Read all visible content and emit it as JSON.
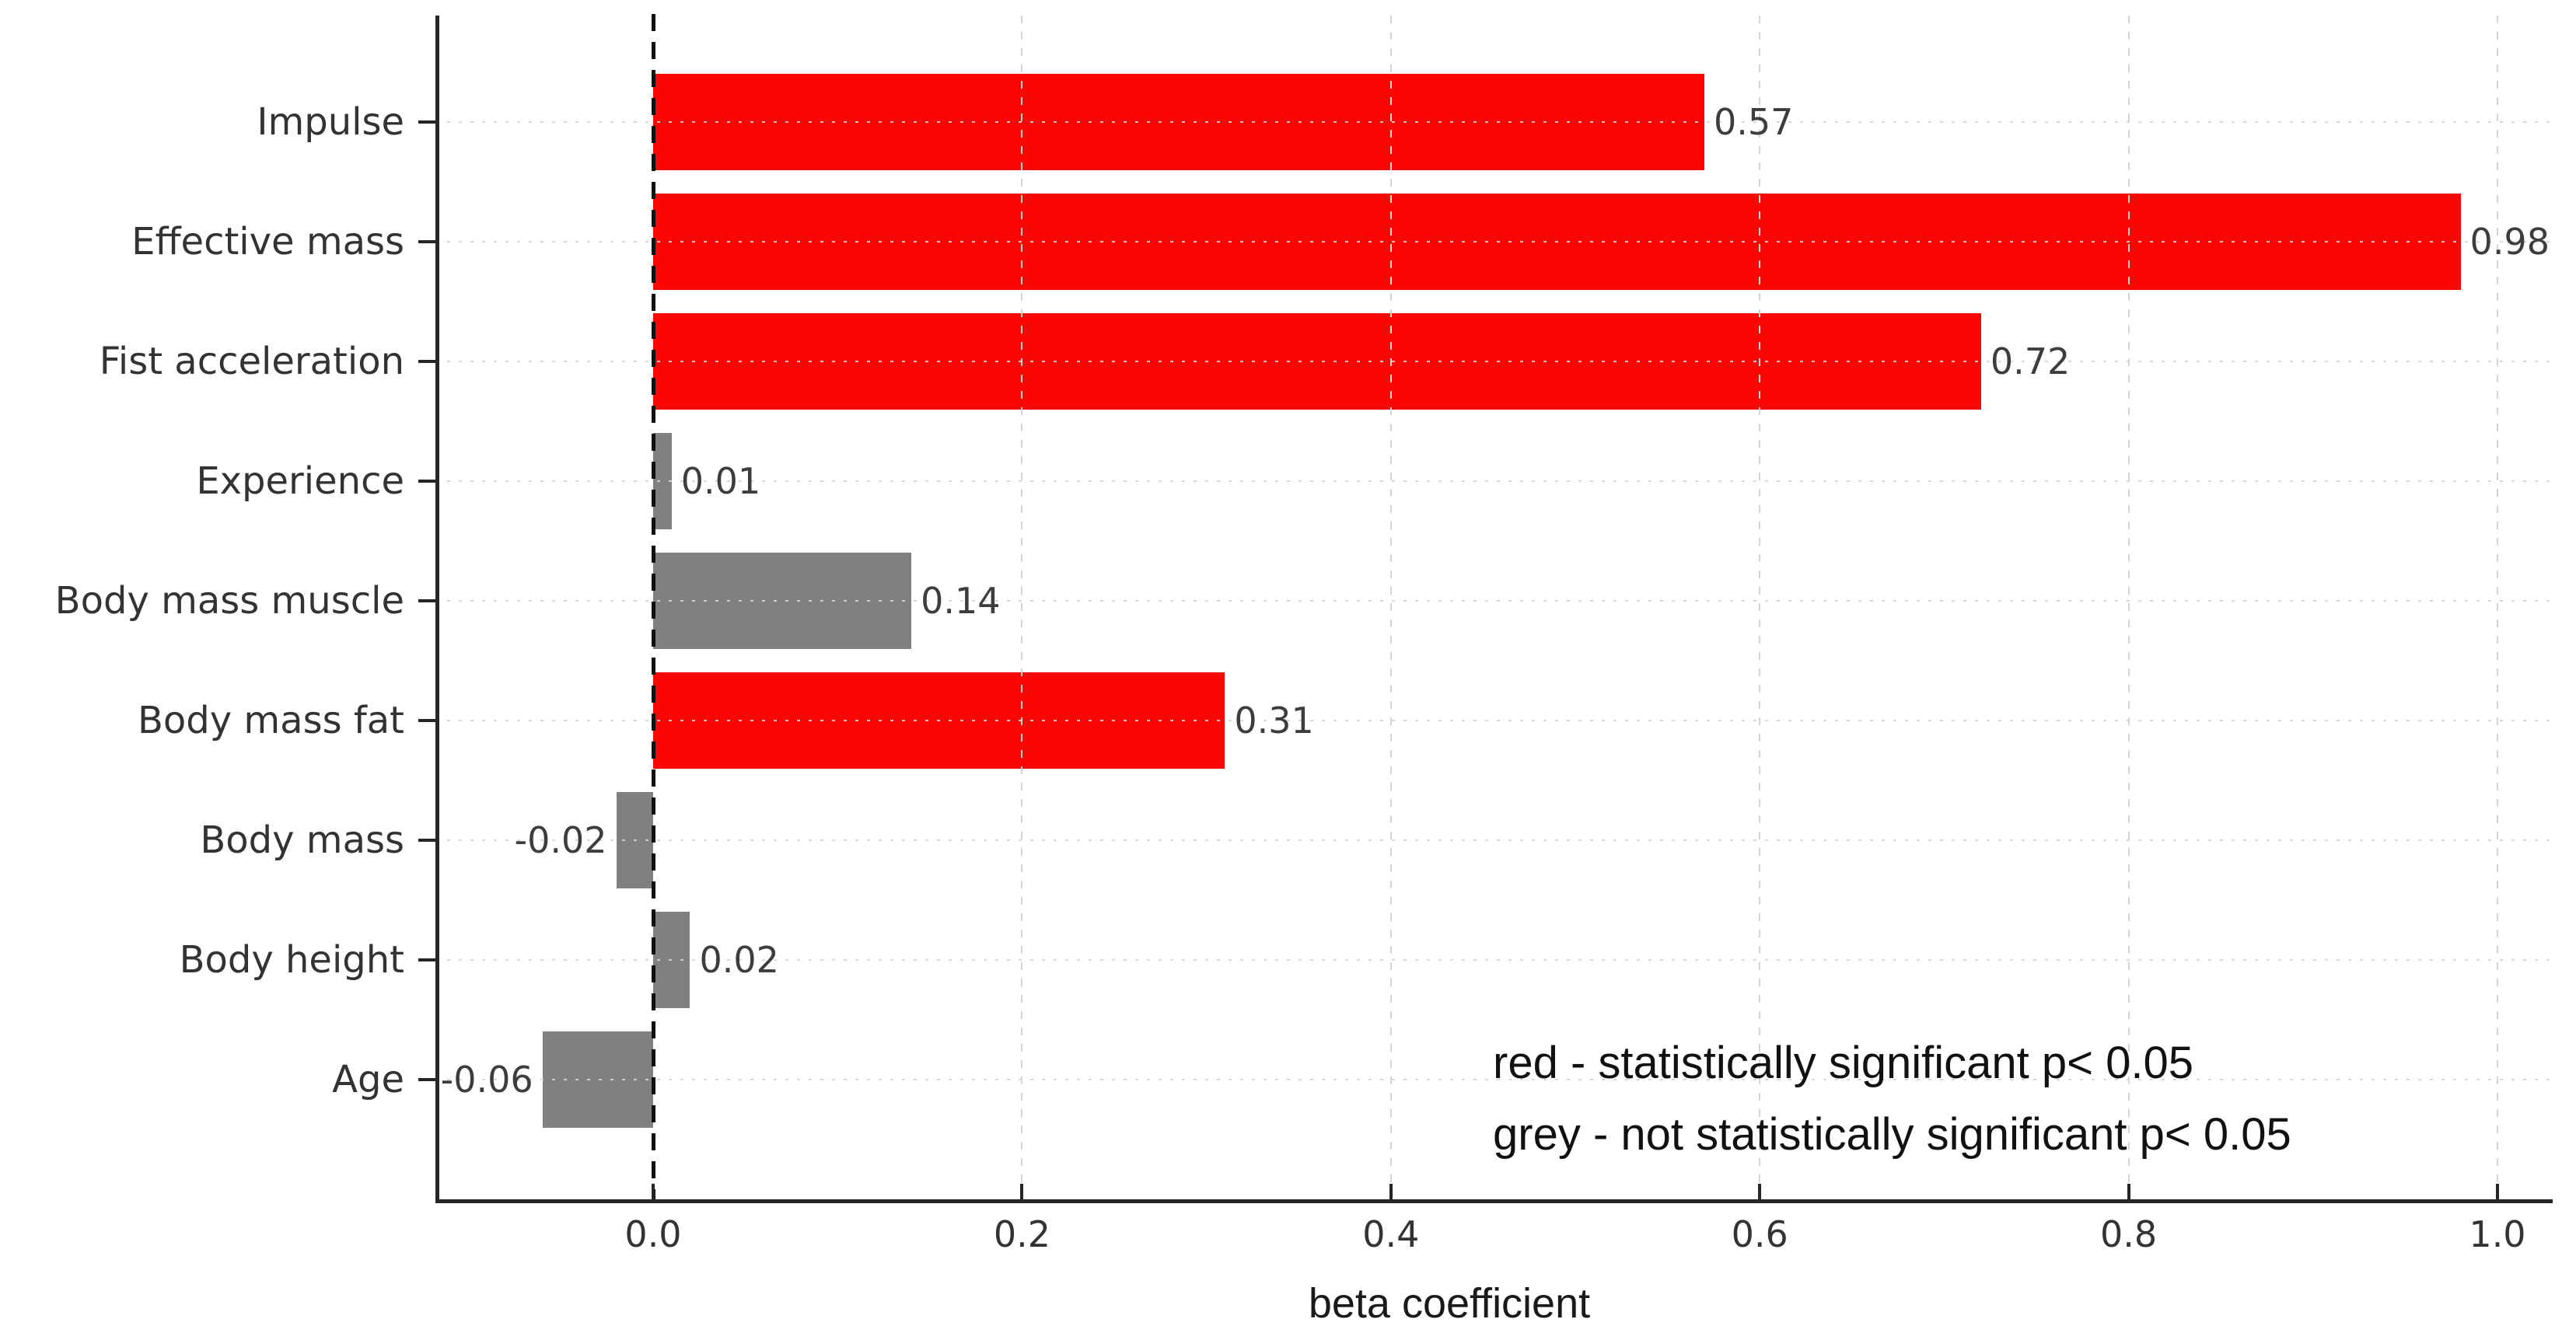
{
  "figure": {
    "background": "#ffffff",
    "x_axis_title": "beta coefficient",
    "legend_note": {
      "line1": "red - statistically significant p< 0.05",
      "line2": "grey - not statistically significant p< 0.05"
    }
  },
  "chart_data": {
    "type": "bar",
    "orientation": "horizontal",
    "title": "",
    "xlabel": "beta coefficient",
    "ylabel": "",
    "categories": [
      "Impulse",
      "Effective mass",
      "Fist acceleration",
      "Experience",
      "Body mass muscle",
      "Body mass fat",
      "Body mass",
      "Body height",
      "Age"
    ],
    "values": [
      0.57,
      0.98,
      0.72,
      0.01,
      0.14,
      0.31,
      -0.02,
      0.02,
      -0.06
    ],
    "value_labels": [
      "0.57",
      "0.98",
      "0.72",
      "0.01",
      "0.14",
      "0.31",
      "-0.02",
      "0.02",
      "-0.06"
    ],
    "significant": [
      true,
      true,
      true,
      false,
      false,
      true,
      false,
      false,
      false
    ],
    "colors": {
      "significant": "#fb0505",
      "not_significant": "#808080",
      "grid": "#d4d4d4",
      "zero_line": "#111111",
      "axis": "#262626",
      "text": "#333333"
    },
    "x_ticks": [
      0.0,
      0.2,
      0.4,
      0.6,
      0.8,
      1.0
    ],
    "x_tick_labels": [
      "0.0",
      "0.2",
      "0.4",
      "0.6",
      "0.8",
      "1.0"
    ],
    "xlim": [
      -0.125,
      1.03
    ],
    "grid": {
      "vertical": "dashed",
      "horizontal": "dotted",
      "drawn_over_bars": true
    },
    "zero_line": {
      "x": 0,
      "style": "black dashed"
    },
    "legend_position": "lower-right text annotation",
    "annotations": [
      "red - statistically significant p< 0.05",
      "grey - not statistically significant p< 0.05"
    ]
  }
}
